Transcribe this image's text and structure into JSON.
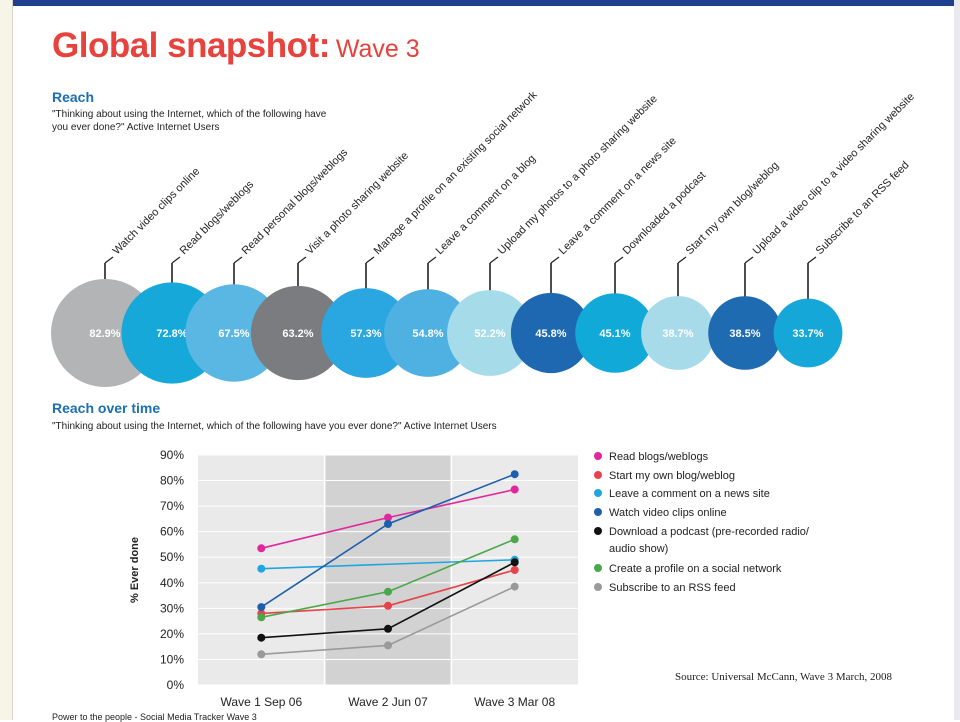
{
  "title": {
    "main": "Global snapshot:",
    "sub": "Wave 3"
  },
  "reach": {
    "heading": "Reach",
    "question": "\"Thinking about using the Internet, which of the following have you ever done?\" Active Internet Users"
  },
  "reach_over_time": {
    "heading": "Reach over time",
    "question": "\"Thinking about using the Internet, which of the following have you ever done?\" Active Internet Users"
  },
  "source": "Source: Universal McCann, Wave 3 March, 2008",
  "footer": "Power to the people - Social Media Tracker Wave 3",
  "chart_data": [
    {
      "type": "bubble",
      "title": "Reach",
      "items": [
        {
          "label": "Watch video clips online",
          "value": 82.9,
          "display": "82.9%",
          "color": "#b2b4b6"
        },
        {
          "label": "Read blogs/weblogs",
          "value": 72.8,
          "display": "72.8%",
          "color": "#16a8d8"
        },
        {
          "label": "Read personal blogs/weblogs",
          "value": 67.5,
          "display": "67.5%",
          "color": "#5ab7e4"
        },
        {
          "label": "Visit a photo sharing website",
          "value": 63.2,
          "display": "63.2%",
          "color": "#7a7c7f"
        },
        {
          "label": "Manage a profile on an existing social network",
          "value": 57.3,
          "display": "57.3%",
          "color": "#2aa6e0"
        },
        {
          "label": "Leave a comment on a blog",
          "value": 54.8,
          "display": "54.8%",
          "color": "#4fb1e2"
        },
        {
          "label": "Upload my photos to a photo sharing website",
          "value": 52.2,
          "display": "52.2%",
          "color": "#a6dcea"
        },
        {
          "label": "Leave a comment on a news site",
          "value": 45.8,
          "display": "45.8%",
          "color": "#1d68b0"
        },
        {
          "label": "Downloaded a podcast",
          "value": 45.1,
          "display": "45.1%",
          "color": "#10a9d8"
        },
        {
          "label": "Start my own blog/weblog",
          "value": 38.7,
          "display": "38.7%",
          "color": "#a8dbea"
        },
        {
          "label": "Upload a video clip to a video sharing website",
          "value": 38.5,
          "display": "38.5%",
          "color": "#1e6bb2"
        },
        {
          "label": "Subscribe to an RSS feed",
          "value": 33.7,
          "display": "33.7%",
          "color": "#14a7d8"
        }
      ]
    },
    {
      "type": "line",
      "title": "Reach over time",
      "categories": [
        "Wave 1 Sep 06",
        "Wave 2 Jun 07",
        "Wave 3 Mar 08"
      ],
      "ylabel": "% Ever done",
      "ylim": [
        0,
        90
      ],
      "yticks": [
        "0%",
        "10%",
        "20%",
        "30%",
        "40%",
        "50%",
        "60%",
        "70%",
        "80%",
        "90%"
      ],
      "grid": true,
      "highlight_category": "Wave 2 Jun 07",
      "legend_position": "right",
      "series": [
        {
          "name": "Read blogs/weblogs",
          "values": [
            53.5,
            65.5,
            76.5
          ],
          "color": "#e0279b"
        },
        {
          "name": "Start my own blog/weblog",
          "values": [
            28,
            31,
            45
          ],
          "color": "#e8424a"
        },
        {
          "name": "Leave a comment on a news site",
          "values": [
            45.5,
            null,
            49
          ],
          "color": "#1fa6e0"
        },
        {
          "name": "Watch video clips online",
          "values": [
            30.5,
            63,
            82.5
          ],
          "color": "#1d5fad"
        },
        {
          "name": "Download a podcast (pre-recorded radio/ audio show)",
          "values": [
            18.5,
            22,
            48
          ],
          "color": "#111111"
        },
        {
          "name": "Create a profile on a social network",
          "values": [
            26.5,
            36.5,
            57
          ],
          "color": "#4aa84a"
        },
        {
          "name": "Subscribe to an RSS feed",
          "values": [
            12,
            15.5,
            38.5
          ],
          "color": "#9a9a9a"
        }
      ]
    }
  ]
}
